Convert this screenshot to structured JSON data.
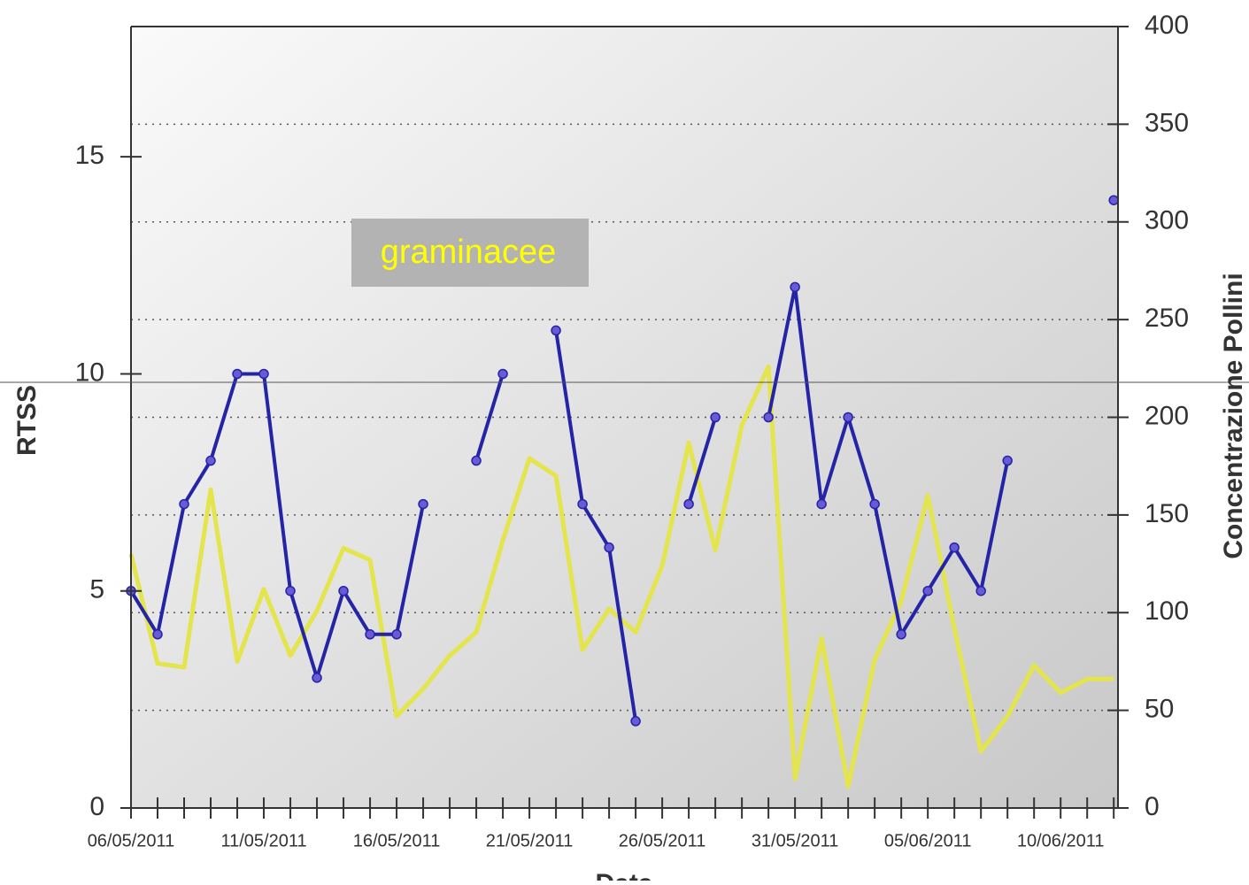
{
  "chart_data": {
    "type": "line",
    "xlabel": "Data",
    "ylabel": "RTSS",
    "y2label": "Concentrazione Pollini",
    "annotation": "graminacee",
    "categories": [
      "06/05/2011",
      null,
      null,
      null,
      null,
      "11/05/2011",
      null,
      null,
      null,
      null,
      "16/05/2011",
      null,
      null,
      null,
      null,
      "21/05/2011",
      null,
      null,
      null,
      null,
      "26/05/2011",
      null,
      null,
      null,
      null,
      "31/05/2011",
      null,
      null,
      null,
      null,
      "05/06/2011",
      null,
      null,
      null,
      null,
      "10/06/2011",
      null,
      null
    ],
    "ylim": [
      0,
      18
    ],
    "yticks": [
      0,
      5,
      10,
      15
    ],
    "y2lim": [
      0,
      400
    ],
    "y2ticks": [
      0,
      50,
      100,
      150,
      200,
      250,
      300,
      350,
      400
    ],
    "grid": true,
    "series": [
      {
        "name": "Concentrazione Pollini",
        "color": "#e4e44c",
        "axis": "y2",
        "values": [
          130,
          74,
          72,
          163,
          75,
          112,
          78,
          101,
          133,
          127,
          47,
          61,
          78,
          90,
          137,
          179,
          170,
          81,
          102,
          90,
          124,
          187,
          132,
          196,
          226,
          15,
          87,
          11,
          76,
          106,
          160,
          92,
          29,
          47,
          73,
          59,
          66,
          66
        ]
      },
      {
        "name": "RTSS",
        "color": "#2424a6",
        "axis": "y",
        "values": [
          5,
          4,
          7,
          8,
          10,
          10,
          5,
          3,
          5,
          4,
          4,
          7,
          null,
          8,
          10,
          null,
          11,
          7,
          6,
          2,
          null,
          7,
          9,
          null,
          9,
          12,
          7,
          9,
          7,
          4,
          5,
          6,
          5,
          8,
          null,
          null,
          null,
          14
        ]
      }
    ]
  }
}
